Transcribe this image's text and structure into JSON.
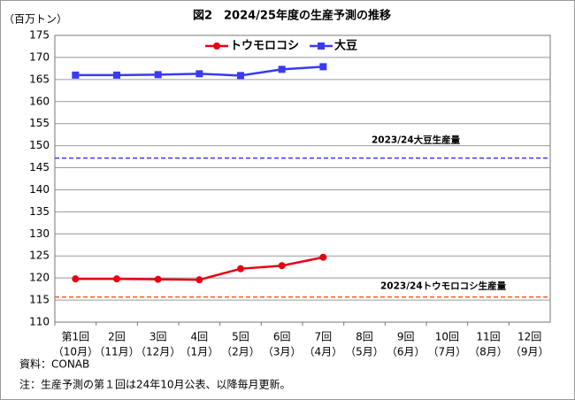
{
  "chart_data": {
    "type": "line",
    "title": "図2　2024/25年度の生産予測の推移",
    "y_axis_label": "（百万トン）",
    "categories": [
      "第1回",
      "2回",
      "3回",
      "4回",
      "5回",
      "6回",
      "7回",
      "8回",
      "9回",
      "10回",
      "11回",
      "12回"
    ],
    "category_months": [
      "（10月）",
      "（11月）",
      "（12月）",
      "（1月）",
      "（2月）",
      "（3月）",
      "（4月）",
      "（5月）",
      "（6月）",
      "（7月）",
      "（8月）",
      "（9月）"
    ],
    "series": [
      {
        "name": "トウモロコシ",
        "color": "#e60012",
        "marker": "circle",
        "values": [
          119.8,
          119.8,
          119.7,
          119.6,
          122.1,
          122.8,
          124.7,
          null,
          null,
          null,
          null,
          null
        ]
      },
      {
        "name": "大豆",
        "color": "#3a3af0",
        "marker": "square",
        "values": [
          166.0,
          166.0,
          166.1,
          166.3,
          165.9,
          167.3,
          167.9,
          null,
          null,
          null,
          null,
          null
        ]
      }
    ],
    "reference_lines": [
      {
        "label": "2023/24大豆生産量",
        "value": 147.2,
        "color": "#3a3af0"
      },
      {
        "label": "2023/24トウモロコシ生産量",
        "value": 115.7,
        "color": "#f05a28"
      }
    ],
    "ylim": [
      110,
      175
    ],
    "yticks": [
      110,
      115,
      120,
      125,
      130,
      135,
      140,
      145,
      150,
      155,
      160,
      165,
      170,
      175
    ],
    "grid": true,
    "legend": "top",
    "notes": [
      "資料：CONAB",
      "注：生産予測の第１回は24年10月公表、以降毎月更新。"
    ]
  }
}
